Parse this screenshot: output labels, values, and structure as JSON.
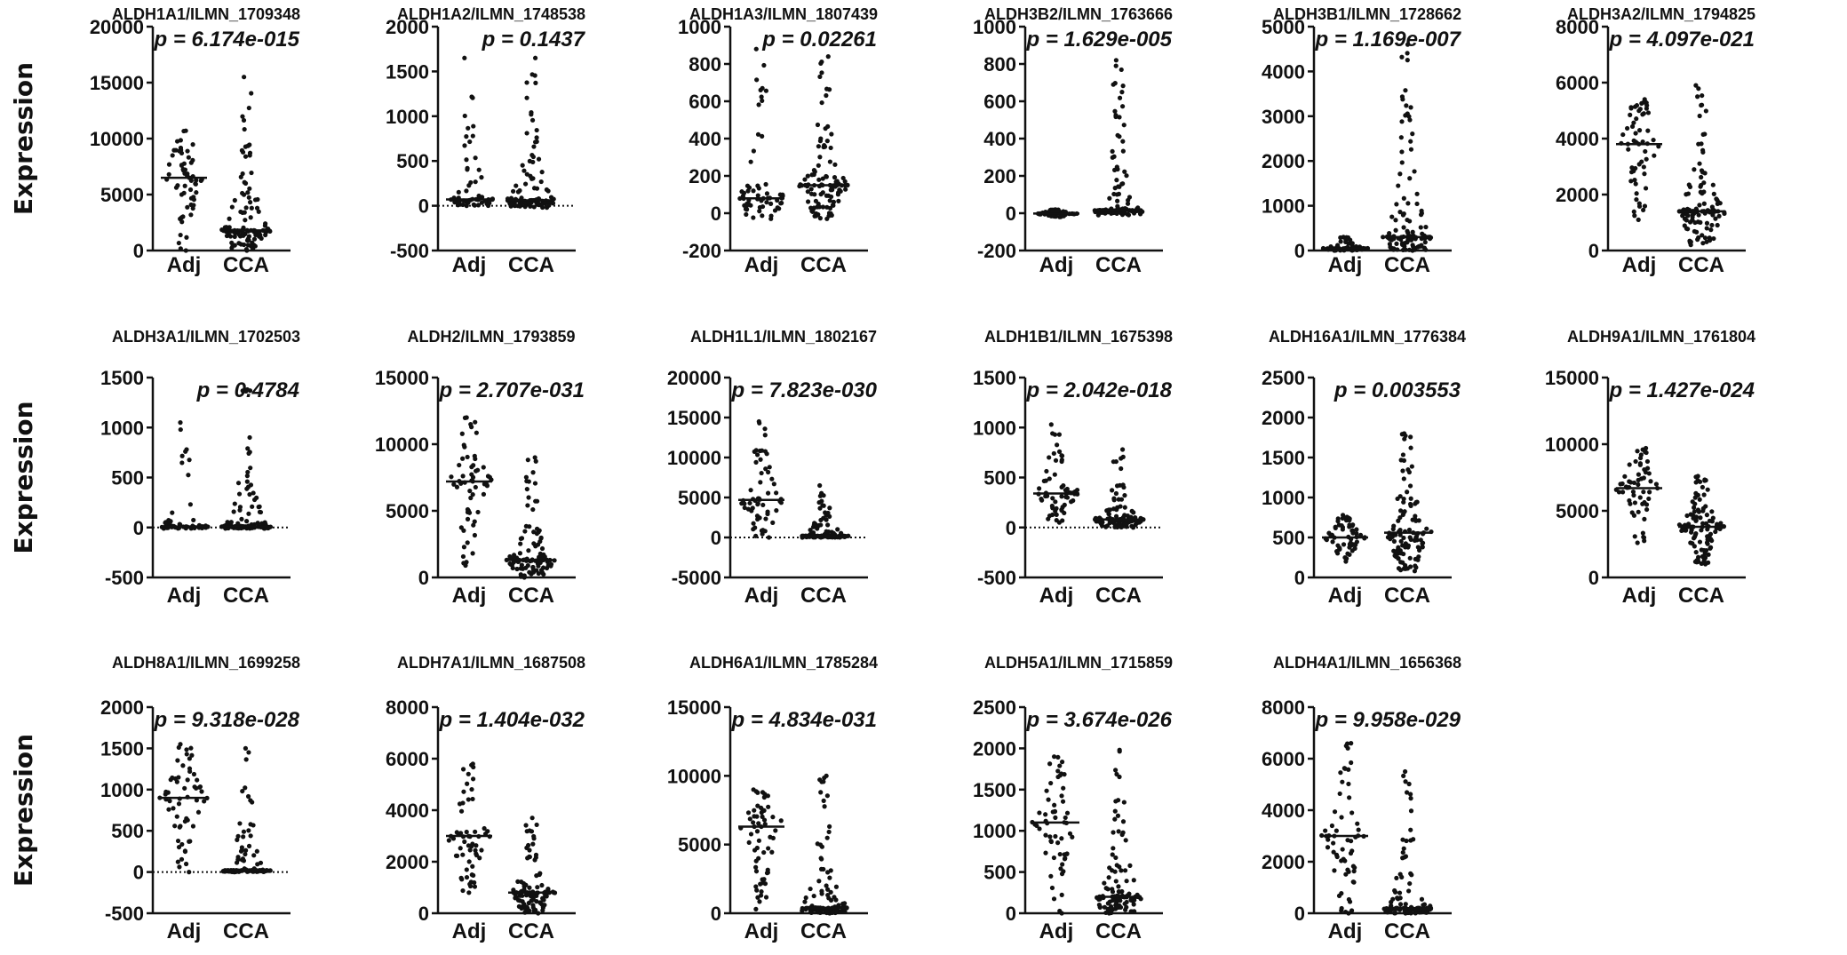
{
  "chart_data": [
    {
      "type": "scatter",
      "title": "ALDH1A1/ILMN_1709348",
      "p_label": "p = 6.174e-015",
      "ylim": [
        0,
        20000
      ],
      "yticks": [
        0,
        5000,
        10000,
        15000,
        20000
      ],
      "zero_line": false,
      "categories": [
        "Adj",
        "CCA"
      ],
      "groups": [
        {
          "name": "Adj",
          "median": 6500,
          "min": 0,
          "max": 10700,
          "n": 60
        },
        {
          "name": "CCA",
          "median": 1800,
          "min": 0,
          "max": 15500,
          "n": 110
        }
      ]
    },
    {
      "type": "scatter",
      "title": "ALDH1A2/ILMN_1748538",
      "p_label": "p = 0.1437",
      "ylim": [
        -500,
        2000
      ],
      "yticks": [
        -500,
        0,
        500,
        1000,
        1500,
        2000
      ],
      "zero_line": true,
      "categories": [
        "Adj",
        "CCA"
      ],
      "groups": [
        {
          "name": "Adj",
          "median": 70,
          "min": 0,
          "max": 1650,
          "n": 60
        },
        {
          "name": "CCA",
          "median": 60,
          "min": -20,
          "max": 1650,
          "n": 110
        }
      ]
    },
    {
      "type": "scatter",
      "title": "ALDH1A3/ILMN_1807439",
      "p_label": "p = 0.02261",
      "ylim": [
        -200,
        1000
      ],
      "yticks": [
        -200,
        0,
        200,
        400,
        600,
        800,
        1000
      ],
      "zero_line": false,
      "categories": [
        "Adj",
        "CCA"
      ],
      "groups": [
        {
          "name": "Adj",
          "median": 80,
          "min": -30,
          "max": 880,
          "n": 60
        },
        {
          "name": "CCA",
          "median": 150,
          "min": -30,
          "max": 840,
          "n": 110
        }
      ]
    },
    {
      "type": "scatter",
      "title": "ALDH3B2/ILMN_1763666",
      "p_label": "p = 1.629e-005",
      "ylim": [
        -200,
        1000
      ],
      "yticks": [
        -200,
        0,
        200,
        400,
        600,
        800,
        1000
      ],
      "zero_line": false,
      "categories": [
        "Adj",
        "CCA"
      ],
      "groups": [
        {
          "name": "Adj",
          "median": -2,
          "min": -20,
          "max": 20,
          "n": 60
        },
        {
          "name": "CCA",
          "median": 15,
          "min": -10,
          "max": 820,
          "n": 110
        }
      ]
    },
    {
      "type": "scatter",
      "title": "ALDH3B1/ILMN_1728662",
      "p_label": "p = 1.169e-007",
      "ylim": [
        0,
        5000
      ],
      "yticks": [
        0,
        1000,
        2000,
        3000,
        4000,
        5000
      ],
      "zero_line": false,
      "categories": [
        "Adj",
        "CCA"
      ],
      "groups": [
        {
          "name": "Adj",
          "median": 50,
          "min": 0,
          "max": 300,
          "n": 60
        },
        {
          "name": "CCA",
          "median": 300,
          "min": 0,
          "max": 4600,
          "n": 110
        }
      ]
    },
    {
      "type": "scatter",
      "title": "ALDH3A2/ILMN_1794825",
      "p_label": "p = 4.097e-021",
      "ylim": [
        0,
        8000
      ],
      "yticks": [
        0,
        2000,
        4000,
        6000,
        8000
      ],
      "zero_line": false,
      "categories": [
        "Adj",
        "CCA"
      ],
      "groups": [
        {
          "name": "Adj",
          "median": 3800,
          "min": 1100,
          "max": 5400,
          "n": 60
        },
        {
          "name": "CCA",
          "median": 1400,
          "min": 200,
          "max": 5900,
          "n": 110
        }
      ]
    },
    {
      "type": "scatter",
      "title": "ALDH3A1/ILMN_1702503",
      "p_label": "p = 0.4784",
      "ylim": [
        -500,
        1500
      ],
      "yticks": [
        -500,
        0,
        500,
        1000,
        1500
      ],
      "zero_line": true,
      "categories": [
        "Adj",
        "CCA"
      ],
      "groups": [
        {
          "name": "Adj",
          "median": 10,
          "min": -10,
          "max": 1050,
          "n": 60
        },
        {
          "name": "CCA",
          "median": 10,
          "min": -10,
          "max": 1380,
          "n": 110
        }
      ]
    },
    {
      "type": "scatter",
      "title": "ALDH2/ILMN_1793859",
      "p_label": "p = 2.707e-031",
      "ylim": [
        0,
        15000
      ],
      "yticks": [
        0,
        5000,
        10000,
        15000
      ],
      "zero_line": false,
      "categories": [
        "Adj",
        "CCA"
      ],
      "groups": [
        {
          "name": "Adj",
          "median": 7200,
          "min": 900,
          "max": 12000,
          "n": 60
        },
        {
          "name": "CCA",
          "median": 1300,
          "min": 0,
          "max": 9000,
          "n": 110
        }
      ]
    },
    {
      "type": "scatter",
      "title": "ALDH1L1/ILMN_1802167",
      "p_label": "p = 7.823e-030",
      "ylim": [
        -5000,
        20000
      ],
      "yticks": [
        -5000,
        0,
        5000,
        10000,
        15000,
        20000
      ],
      "zero_line": true,
      "categories": [
        "Adj",
        "CCA"
      ],
      "groups": [
        {
          "name": "Adj",
          "median": 4700,
          "min": 0,
          "max": 14500,
          "n": 60
        },
        {
          "name": "CCA",
          "median": 200,
          "min": 0,
          "max": 6500,
          "n": 110
        }
      ]
    },
    {
      "type": "scatter",
      "title": "ALDH1B1/ILMN_1675398",
      "p_label": "p = 2.042e-018",
      "ylim": [
        -500,
        1500
      ],
      "yticks": [
        -500,
        0,
        500,
        1000,
        1500
      ],
      "zero_line": true,
      "categories": [
        "Adj",
        "CCA"
      ],
      "groups": [
        {
          "name": "Adj",
          "median": 340,
          "min": 50,
          "max": 1030,
          "n": 60
        },
        {
          "name": "CCA",
          "median": 80,
          "min": 0,
          "max": 780,
          "n": 110
        }
      ]
    },
    {
      "type": "scatter",
      "title": "ALDH16A1/ILMN_1776384",
      "p_label": "p = 0.003553",
      "ylim": [
        0,
        2500
      ],
      "yticks": [
        0,
        500,
        1000,
        1500,
        2000,
        2500
      ],
      "zero_line": false,
      "categories": [
        "Adj",
        "CCA"
      ],
      "groups": [
        {
          "name": "Adj",
          "median": 500,
          "min": 200,
          "max": 780,
          "n": 60
        },
        {
          "name": "CCA",
          "median": 560,
          "min": 80,
          "max": 1800,
          "n": 110
        }
      ]
    },
    {
      "type": "scatter",
      "title": "ALDH9A1/ILMN_1761804",
      "p_label": "p = 1.427e-024",
      "ylim": [
        0,
        15000
      ],
      "yticks": [
        0,
        5000,
        10000,
        15000
      ],
      "zero_line": false,
      "categories": [
        "Adj",
        "CCA"
      ],
      "groups": [
        {
          "name": "Adj",
          "median": 6700,
          "min": 2600,
          "max": 9700,
          "n": 60
        },
        {
          "name": "CCA",
          "median": 3800,
          "min": 1000,
          "max": 7600,
          "n": 110
        }
      ]
    },
    {
      "type": "scatter",
      "title": "ALDH8A1/ILMN_1699258",
      "p_label": "p = 9.318e-028",
      "ylim": [
        -500,
        2000
      ],
      "yticks": [
        -500,
        0,
        500,
        1000,
        1500,
        2000
      ],
      "zero_line": true,
      "categories": [
        "Adj",
        "CCA"
      ],
      "groups": [
        {
          "name": "Adj",
          "median": 900,
          "min": 0,
          "max": 1550,
          "n": 60
        },
        {
          "name": "CCA",
          "median": 20,
          "min": 0,
          "max": 1500,
          "n": 110
        }
      ]
    },
    {
      "type": "scatter",
      "title": "ALDH7A1/ILMN_1687508",
      "p_label": "p = 1.404e-032",
      "ylim": [
        0,
        8000
      ],
      "yticks": [
        0,
        2000,
        4000,
        6000,
        8000
      ],
      "zero_line": false,
      "categories": [
        "Adj",
        "CCA"
      ],
      "groups": [
        {
          "name": "Adj",
          "median": 3000,
          "min": 800,
          "max": 5800,
          "n": 60
        },
        {
          "name": "CCA",
          "median": 800,
          "min": 0,
          "max": 3700,
          "n": 110
        }
      ]
    },
    {
      "type": "scatter",
      "title": "ALDH6A1/ILMN_1785284",
      "p_label": "p = 4.834e-031",
      "ylim": [
        0,
        15000
      ],
      "yticks": [
        0,
        5000,
        10000,
        15000
      ],
      "zero_line": false,
      "categories": [
        "Adj",
        "CCA"
      ],
      "groups": [
        {
          "name": "Adj",
          "median": 6300,
          "min": 300,
          "max": 9000,
          "n": 60
        },
        {
          "name": "CCA",
          "median": 400,
          "min": 0,
          "max": 10000,
          "n": 110
        }
      ]
    },
    {
      "type": "scatter",
      "title": "ALDH5A1/ILMN_1715859",
      "p_label": "p = 3.674e-026",
      "ylim": [
        0,
        2500
      ],
      "yticks": [
        0,
        500,
        1000,
        1500,
        2000,
        2500
      ],
      "zero_line": false,
      "categories": [
        "Adj",
        "CCA"
      ],
      "groups": [
        {
          "name": "Adj",
          "median": 1100,
          "min": 0,
          "max": 1900,
          "n": 60
        },
        {
          "name": "CCA",
          "median": 200,
          "min": 0,
          "max": 1980,
          "n": 110
        }
      ]
    },
    {
      "type": "scatter",
      "title": "ALDH4A1/ILMN_1656368",
      "p_label": "p = 9.958e-029",
      "ylim": [
        0,
        8000
      ],
      "yticks": [
        0,
        2000,
        4000,
        6000,
        8000
      ],
      "zero_line": false,
      "categories": [
        "Adj",
        "CCA"
      ],
      "groups": [
        {
          "name": "Adj",
          "median": 3000,
          "min": 0,
          "max": 6600,
          "n": 60
        },
        {
          "name": "CCA",
          "median": 200,
          "min": 0,
          "max": 5500,
          "n": 110
        }
      ]
    }
  ],
  "ylabel": "Expression",
  "dot_color": "#111111"
}
